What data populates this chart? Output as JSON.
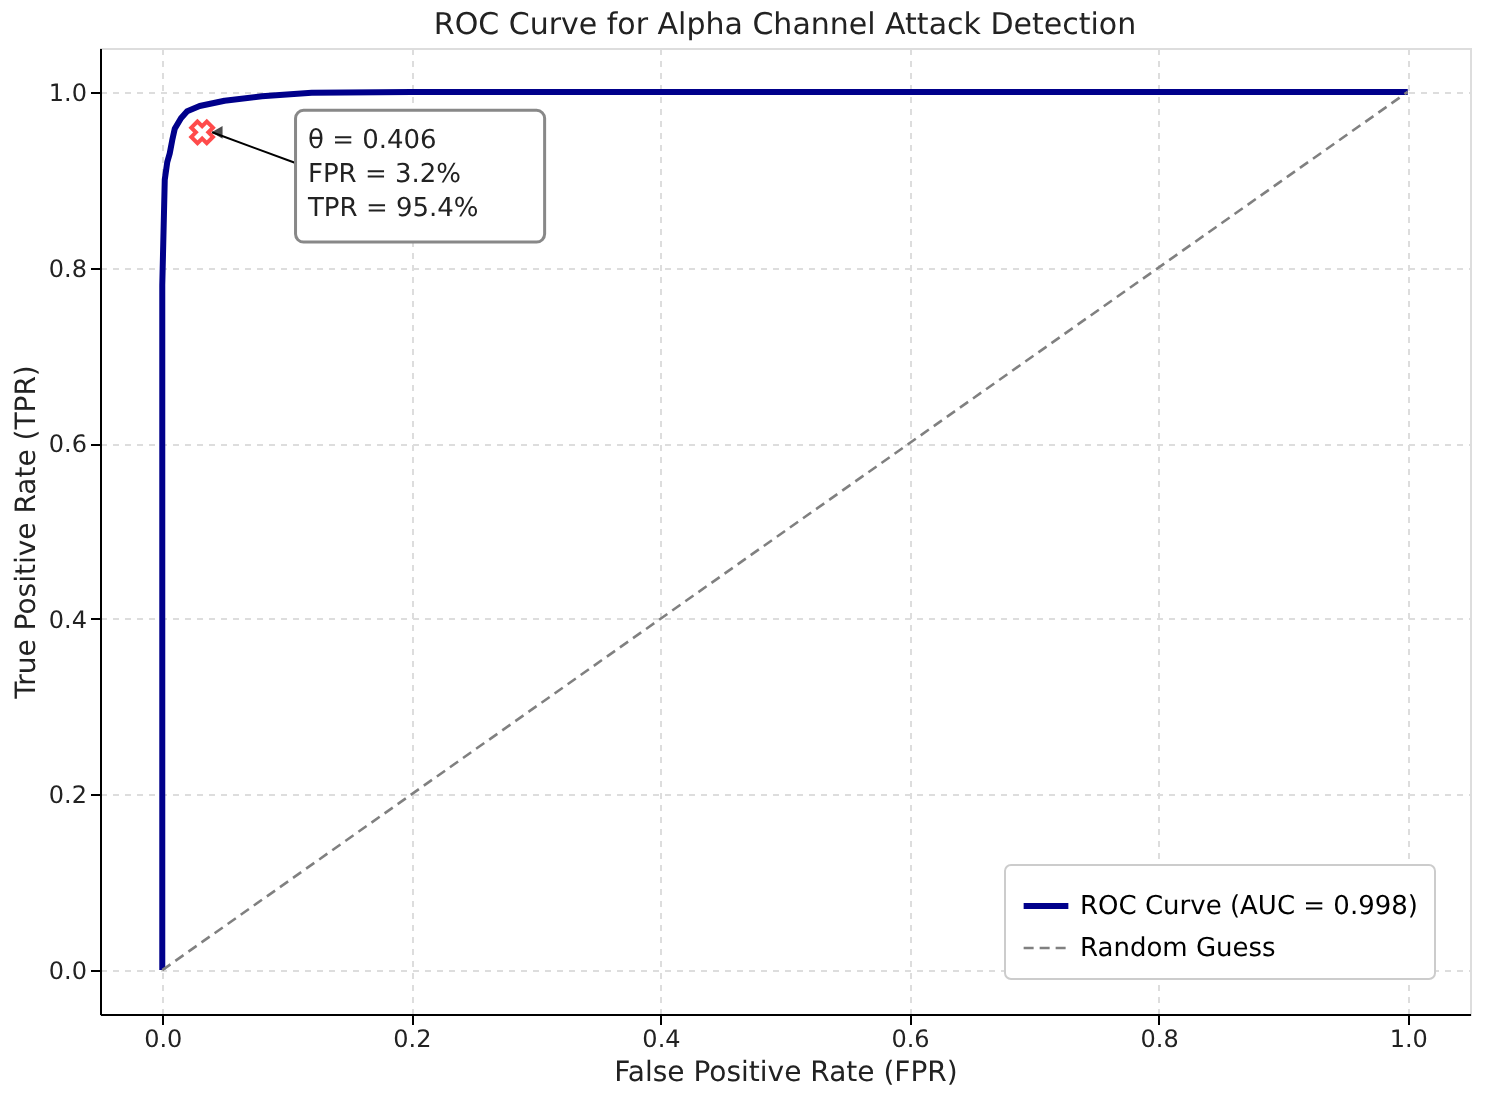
{
  "chart_data": {
    "type": "line",
    "title": "ROC Curve for Alpha Channel Attack Detection",
    "xlabel": "False Positive Rate (FPR)",
    "ylabel": "True Positive Rate (TPR)",
    "series": [
      {
        "name": "ROC Curve (AUC = 0.998)",
        "color": "#00008b",
        "line_style": "solid",
        "x": [
          0,
          0,
          0.002,
          0.004,
          0.006,
          0.008,
          0.01,
          0.015,
          0.02,
          0.03,
          0.05,
          0.08,
          0.12,
          0.2,
          1
        ],
        "values": [
          0,
          0.78,
          0.9,
          0.92,
          0.93,
          0.945,
          0.958,
          0.97,
          0.978,
          0.984,
          0.99,
          0.995,
          0.999,
          1,
          1
        ]
      },
      {
        "name": "Random Guess",
        "color": "#808080",
        "line_style": "dashed",
        "x": [
          0,
          1
        ],
        "values": [
          0,
          1
        ]
      },
      {
        "type": "scatter",
        "color": "#ff0000",
        "marker": "cross",
        "x": [
          0.032
        ],
        "values": [
          0.954
        ]
      }
    ],
    "annotations": [
      {
        "text": "θ = 0.406\nFPR = 3.2%\nTPR = 95.4%",
        "x": 0.032,
        "y": 0.954
      }
    ],
    "xlim": [
      -0.05,
      1.05
    ],
    "ylim": [
      -0.05,
      1.05
    ],
    "xticks": [
      {
        "value": 0,
        "label": "0.0"
      },
      0.2,
      0.4,
      0.6,
      0.8,
      {
        "value": 1,
        "label": "1.0"
      }
    ],
    "yticks": [
      {
        "value": 0,
        "label": "0.0"
      },
      0.2,
      0.4,
      0.6,
      0.8,
      {
        "value": 1,
        "label": "1.0"
      }
    ],
    "grid": true,
    "legend": "bottom right"
  }
}
